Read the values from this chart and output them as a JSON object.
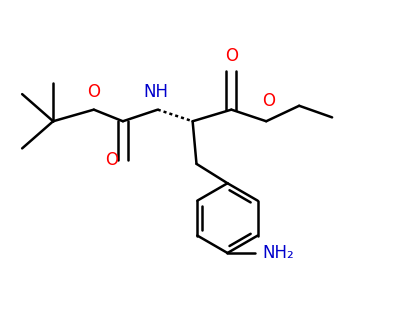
{
  "bg_color": "#ffffff",
  "bond_color": "#000000",
  "o_color": "#ff0000",
  "n_color": "#0000cc",
  "line_width": 1.8,
  "figsize": [
    3.93,
    3.2
  ],
  "dpi": 100,
  "xlim": [
    0,
    10
  ],
  "ylim": [
    0,
    8
  ]
}
